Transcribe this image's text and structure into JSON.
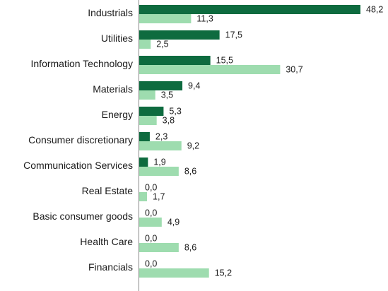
{
  "chart_data": {
    "type": "bar",
    "orientation": "horizontal",
    "categories": [
      "Industrials",
      "Utilities",
      "Information Technology",
      "Materials",
      "Energy",
      "Consumer discretionary",
      "Communication Services",
      "Real Estate",
      "Basic consumer goods",
      "Health Care",
      "Financials"
    ],
    "series": [
      {
        "color": "#0e6b3f",
        "values": [
          48.2,
          17.5,
          15.5,
          9.4,
          5.3,
          2.3,
          1.9,
          0.0,
          0.0,
          0.0,
          0.0
        ],
        "labels": [
          "48,2",
          "17,5",
          "15,5",
          "9,4",
          "5,3",
          "2,3",
          "1,9",
          "0,0",
          "0,0",
          "0,0",
          "0,0"
        ]
      },
      {
        "color": "#9edcaf",
        "values": [
          11.3,
          2.5,
          30.7,
          3.5,
          3.8,
          9.2,
          8.6,
          1.7,
          4.9,
          8.6,
          15.2
        ],
        "labels": [
          "11,3",
          "2,5",
          "30,7",
          "3,5",
          "3,8",
          "9,2",
          "8,6",
          "1,7",
          "4,9",
          "8,6",
          "15,2"
        ]
      }
    ],
    "xlim": [
      0,
      48.2
    ],
    "grid": false,
    "legend": "none",
    "title": "",
    "xlabel": "",
    "ylabel": ""
  }
}
